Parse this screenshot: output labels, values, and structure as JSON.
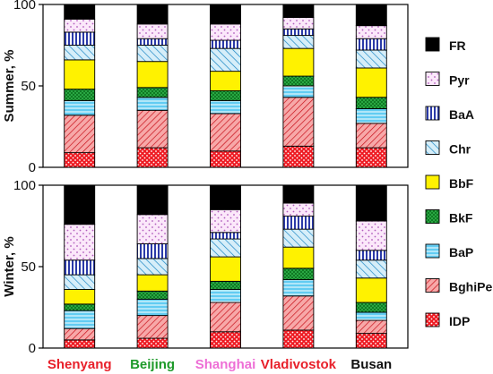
{
  "chart_data": {
    "type": "bar",
    "stacked": true,
    "categories": [
      "Shenyang",
      "Beijing",
      "Shanghai",
      "Vladivostok",
      "Busan"
    ],
    "category_colors": [
      "#e8202a",
      "#1e9a2a",
      "#ee6fd6",
      "#e8202a",
      "#111111"
    ],
    "stack_order_bottom_to_top": [
      "IDP",
      "BghiPe",
      "BaP",
      "BkF",
      "BbF",
      "Chr",
      "BaA",
      "Pyr",
      "FR"
    ],
    "legend_order": [
      "FR",
      "Pyr",
      "BaA",
      "Chr",
      "BbF",
      "BkF",
      "BaP",
      "BghiPe",
      "IDP"
    ],
    "legend_position": "right",
    "series_styles": {
      "IDP": {
        "fill": "#ee1c24",
        "pattern": "dots"
      },
      "BghiPe": {
        "fill": "#f7a8a8",
        "pattern": "diagonal"
      },
      "BaP": {
        "fill": "#62ccf2",
        "pattern": "horizontal"
      },
      "BkF": {
        "fill": "#2fb34a",
        "pattern": "cross"
      },
      "BbF": {
        "fill": "#fff200",
        "pattern": "none"
      },
      "Chr": {
        "fill": "#b9e3f5",
        "pattern": "diagonal"
      },
      "BaA": {
        "fill": "#2b3aa8",
        "pattern": "vertical"
      },
      "Pyr": {
        "fill": "#f6d6f4",
        "pattern": "sparse-dots"
      },
      "FR": {
        "fill": "#000000",
        "pattern": "none"
      }
    },
    "panels": [
      {
        "ylabel": "Summer, %",
        "ylim": [
          0,
          100
        ],
        "yticks": [
          0,
          50,
          100
        ],
        "series": [
          {
            "name": "IDP",
            "values": [
              9,
              12,
              10,
              13,
              12
            ]
          },
          {
            "name": "BghiPe",
            "values": [
              23,
              23,
              23,
              30,
              15
            ]
          },
          {
            "name": "BaP",
            "values": [
              9,
              8,
              8,
              7,
              9
            ]
          },
          {
            "name": "BkF",
            "values": [
              7,
              6,
              6,
              6,
              7
            ]
          },
          {
            "name": "BbF",
            "values": [
              18,
              16,
              12,
              17,
              18
            ]
          },
          {
            "name": "Chr",
            "values": [
              9,
              10,
              14,
              8,
              11
            ]
          },
          {
            "name": "BaA",
            "values": [
              8,
              4,
              5,
              4,
              7
            ]
          },
          {
            "name": "Pyr",
            "values": [
              8,
              9,
              10,
              7,
              8
            ]
          },
          {
            "name": "FR",
            "values": [
              9,
              12,
              12,
              8,
              13
            ]
          }
        ]
      },
      {
        "ylabel": "Winter, %",
        "ylim": [
          0,
          100
        ],
        "yticks": [
          0,
          50,
          100
        ],
        "series": [
          {
            "name": "IDP",
            "values": [
              5,
              6,
              10,
              11,
              9
            ]
          },
          {
            "name": "BghiPe",
            "values": [
              7,
              14,
              18,
              21,
              8
            ]
          },
          {
            "name": "BaP",
            "values": [
              11,
              10,
              8,
              10,
              5
            ]
          },
          {
            "name": "BkF",
            "values": [
              4,
              5,
              5,
              7,
              6
            ]
          },
          {
            "name": "BbF",
            "values": [
              9,
              10,
              15,
              13,
              15
            ]
          },
          {
            "name": "Chr",
            "values": [
              9,
              10,
              11,
              11,
              11
            ]
          },
          {
            "name": "BaA",
            "values": [
              9,
              9,
              4,
              8,
              6
            ]
          },
          {
            "name": "Pyr",
            "values": [
              22,
              18,
              14,
              8,
              18
            ]
          },
          {
            "name": "FR",
            "values": [
              24,
              18,
              15,
              11,
              22
            ]
          }
        ]
      }
    ]
  }
}
